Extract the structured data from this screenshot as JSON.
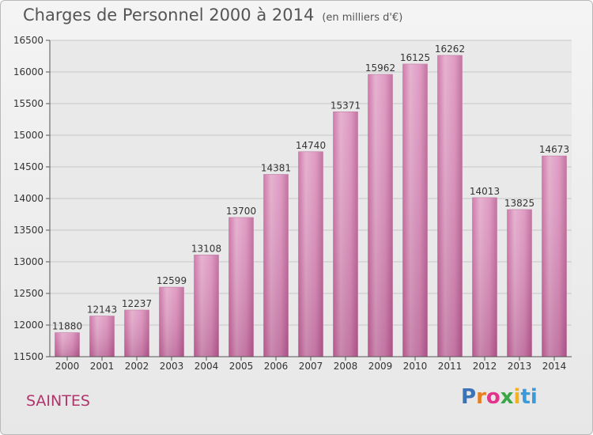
{
  "title": "Charges de Personnel 2000 à 2014",
  "subtitle": "(en milliers d'€)",
  "city": "SAINTES",
  "logo": [
    "P",
    "r",
    "o",
    "x",
    "i",
    "ti"
  ],
  "chart_data": {
    "type": "bar",
    "categories": [
      "2000",
      "2001",
      "2002",
      "2003",
      "2004",
      "2005",
      "2006",
      "2007",
      "2008",
      "2009",
      "2010",
      "2011",
      "2012",
      "2013",
      "2014"
    ],
    "values": [
      11880,
      12143,
      12237,
      12599,
      13108,
      13700,
      14381,
      14740,
      15371,
      15962,
      16125,
      16262,
      14013,
      13825,
      14673
    ],
    "ylim": [
      11500,
      16500
    ],
    "yticks": [
      11500,
      12000,
      12500,
      13000,
      13500,
      14000,
      14500,
      15000,
      15500,
      16000,
      16500
    ],
    "grid": true,
    "bar_color": "#d98ab8"
  }
}
